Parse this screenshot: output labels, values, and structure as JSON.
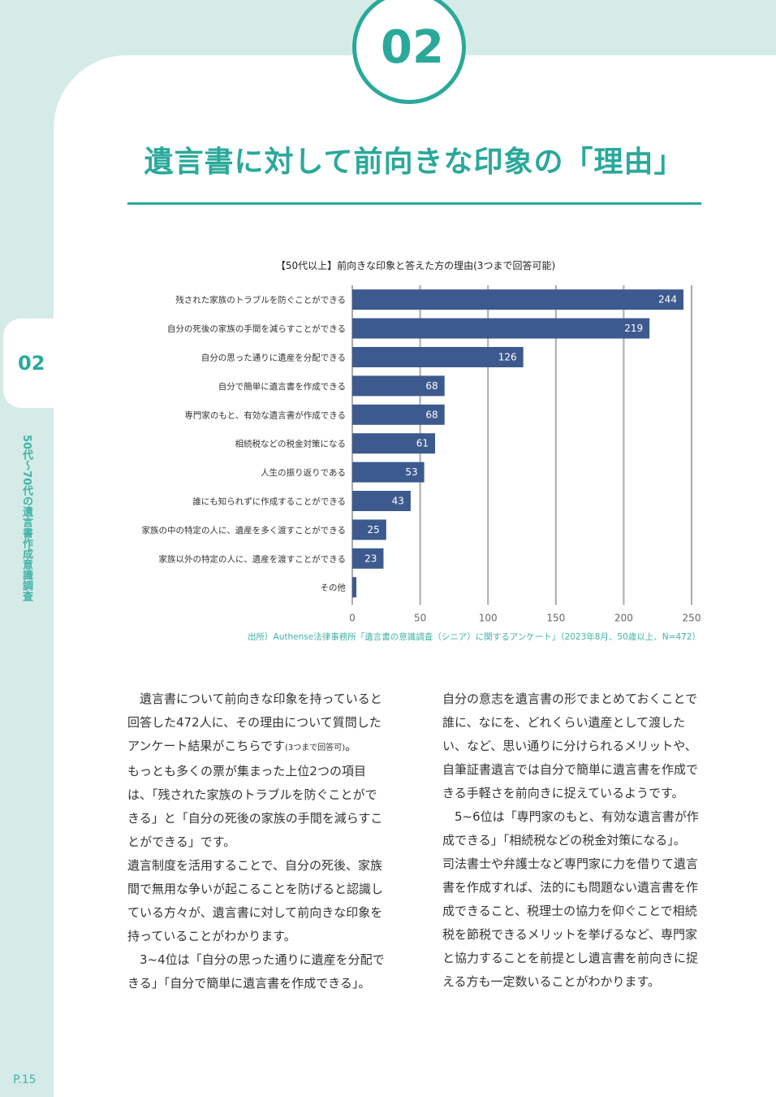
{
  "section_number": "02",
  "side": {
    "number": "02",
    "vertical_label": "50代〜70代の遺言書作成意識調査",
    "page_number": "P.15"
  },
  "title": "遺言書に対して前向きな印象の「理由」",
  "chart_data": {
    "type": "bar",
    "orientation": "horizontal",
    "title": "【50代以上】前向きな印象と答えた方の理由(3つまで回答可能)",
    "categories": [
      "残された家族のトラブルを防ぐことができる",
      "自分の死後の家族の手間を減らすことができる",
      "自分の思った通りに遺産を分配できる",
      "自分で簡単に遺言書を作成できる",
      "専門家のもと、有効な遺言書が作成できる",
      "相続税などの税金対策になる",
      "人生の振り返りである",
      "誰にも知られずに作成することができる",
      "家族の中の特定の人に、遺産を多く渡すことができる",
      "家族以外の特定の人に、遺産を渡すことができる",
      "その他"
    ],
    "values": [
      244,
      219,
      126,
      68,
      68,
      61,
      53,
      43,
      25,
      23,
      3
    ],
    "xlim": [
      0,
      250
    ],
    "xticks": [
      0,
      50,
      100,
      150,
      200,
      250
    ],
    "grid": true,
    "data_labels": true,
    "bar_color": "#3d5a8e"
  },
  "source": "出所）Authense法律事務所「遺言書の意識調査（シニア）に関するアンケート」（2023年8月、50歳以上、N=472）",
  "body": {
    "left": {
      "p1": "遺言書について前向きな印象を持っていると回答した472人に、その理由について質問したアンケート結果がこちらです",
      "p1_note": "(3つまで回答可)",
      "p1_end": "。",
      "p2": "もっとも多くの票が集まった上位2つの項目は、「残された家族のトラブルを防ぐことができる」と「自分の死後の家族の手間を減らすことができる」です。",
      "p3": "遺言制度を活用することで、自分の死後、家族間で無用な争いが起こることを防げると認識している方々が、遺言書に対して前向きな印象を持っていることがわかります。",
      "p4": "3~4位は「自分の思った通りに遺産を分配できる」「自分で簡単に遺言書を作成できる」。"
    },
    "right": {
      "p1": "自分の意志を遺言書の形でまとめておくことで誰に、なにを、どれくらい遺産として渡したい、など、思い通りに分けられるメリットや、自筆証書遺言では自分で簡単に遺言書を作成できる手軽さを前向きに捉えているようです。",
      "p2": "5~6位は「専門家のもと、有効な遺言書が作成できる」「相続税などの税金対策になる」。",
      "p3": "司法書士や弁護士など専門家に力を借りて遺言書を作成すれば、法的にも問題ない遺言書を作成できること、税理士の協力を仰ぐことで相続税を節税できるメリットを挙げるなど、専門家と協力することを前提とし遺言書を前向きに捉える方も一定数いることがわかります。"
    }
  }
}
